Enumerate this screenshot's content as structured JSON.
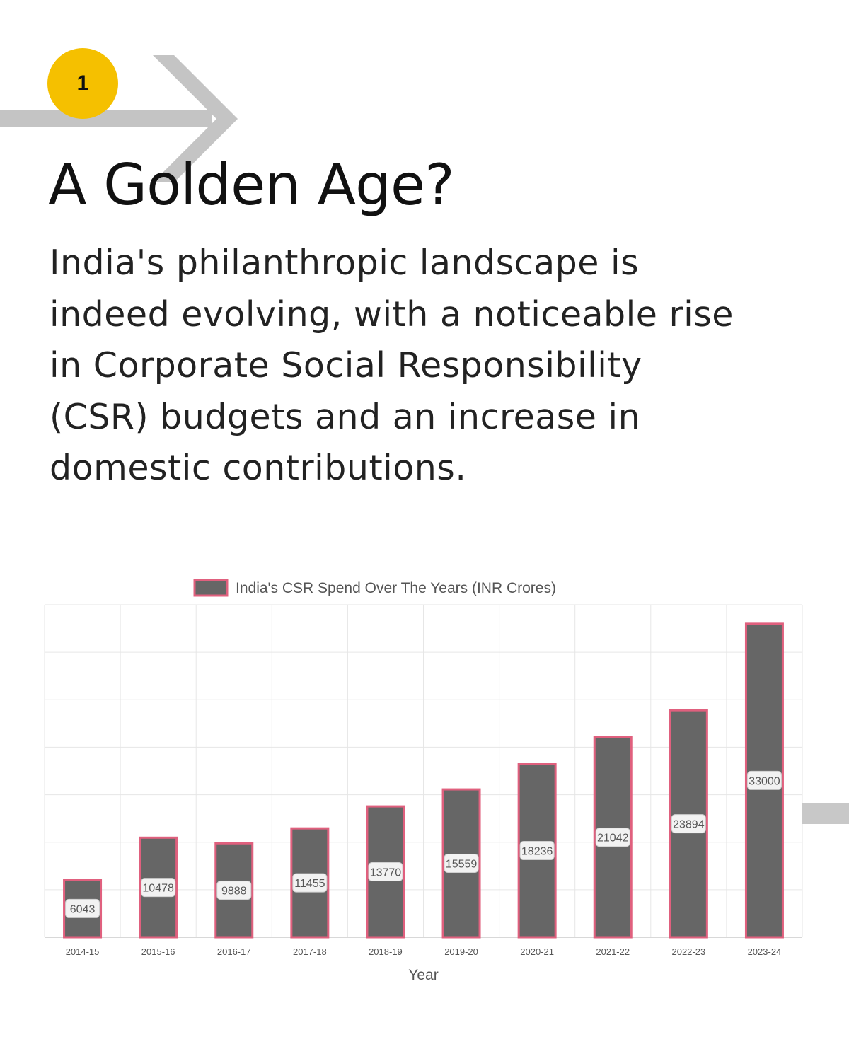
{
  "step": {
    "number": "1"
  },
  "header": {
    "title": "A Golden Age?"
  },
  "intro": {
    "lines": [
      "India's philanthropic landscape is",
      "indeed evolving, with a noticeable rise",
      "in Corporate Social Responsibility",
      "(CSR) budgets and an increase in",
      "domestic contributions."
    ]
  },
  "colors": {
    "accent": "#f5c000",
    "arrow": "#c4c4c4",
    "bar_fill": "#666666",
    "bar_border": "#e0607e",
    "grid": "#e6e6e6",
    "text": "#111111"
  },
  "chart_data": {
    "type": "bar",
    "title": "",
    "xlabel": "Year",
    "ylabel": "",
    "ylim": [
      0,
      35000
    ],
    "grid": true,
    "legend": "top-center",
    "categories": [
      "2014-15",
      "2015-16",
      "2016-17",
      "2017-18",
      "2018-19",
      "2019-20",
      "2020-21",
      "2021-22",
      "2022-23",
      "2023-24"
    ],
    "series": [
      {
        "name": "India's CSR Spend Over The Years (INR Crores)",
        "values": [
          6043,
          10478,
          9888,
          11455,
          13770,
          15559,
          18236,
          21042,
          23894,
          33000
        ]
      }
    ]
  }
}
